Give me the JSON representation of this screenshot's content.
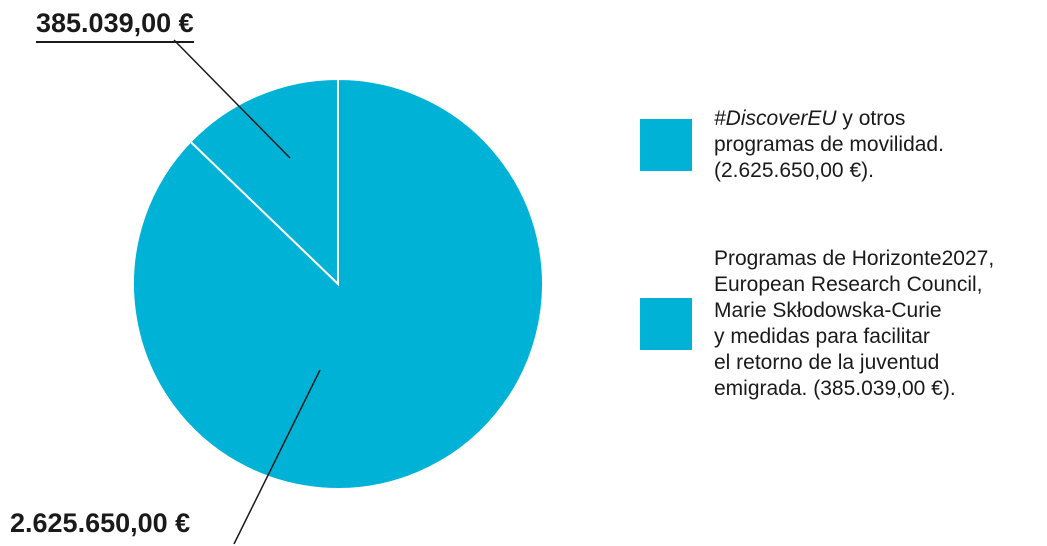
{
  "chart_data": {
    "type": "pie",
    "title": "",
    "colors": [
      "#00b3d6",
      "#00b3d6"
    ],
    "slice_border_color": "#ffffff",
    "slices": [
      {
        "label": "Programas de Horizonte2027, European Research Council, Marie Skłodowska-Curie y medidas para facilitar el retorno de la juventud emigrada. (385.039,00 €).",
        "value": 385039.0,
        "value_label": "385.039,00 €"
      },
      {
        "label": "#DiscoverEU y otros programas de movilidad. (2.625.650,00 €).",
        "value": 2625650.0,
        "value_label": "2.625.650,00 €"
      }
    ],
    "legend": {
      "placement": "right",
      "items": [
        {
          "italic_part": "#DiscoverEU",
          "text": " y otros\nprogramas de movilidad.\n(2.625.650,00 €).",
          "color": "#00b3d6"
        },
        {
          "italic_part": "",
          "text": "Programas de Horizonte2027,\nEuropean Research Council,\nMarie Skłodowska-Curie\ny medidas para facilitar\nel retorno de la juventud\nemigrada. (385.039,00 €).",
          "color": "#00b3d6"
        }
      ]
    }
  }
}
